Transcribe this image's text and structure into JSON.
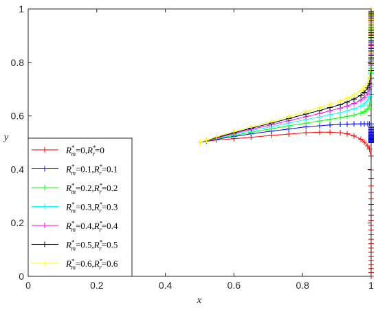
{
  "chart_data": {
    "type": "line",
    "title": "",
    "xlabel": "x",
    "ylabel": "y",
    "xlim": [
      0,
      1
    ],
    "ylim": [
      0,
      1
    ],
    "xticks": [
      "0",
      "0.2",
      "0.4",
      "0.6",
      "0.8",
      "1"
    ],
    "yticks": [
      "0",
      "0.2",
      "0.4",
      "0.6",
      "0.8",
      "1"
    ],
    "grid": false,
    "legend_position": "bottom-left",
    "start_point": [
      0.5,
      0.5
    ],
    "series": [
      {
        "name": "R*m=0,R*r=0",
        "legend": {
          "a": "R",
          "asub": "m",
          "aval": "=0,",
          "b": "R",
          "bsub": "r",
          "bval": "=0"
        },
        "color": "#ff0000",
        "end_y": 0,
        "x": [
          0.5,
          0.52,
          0.55,
          0.6,
          0.65,
          0.71,
          0.76,
          0.81,
          0.85,
          0.88,
          0.91,
          0.93,
          0.95,
          0.97,
          0.98,
          0.99,
          0.995,
          1
        ],
        "y": [
          0.5,
          0.505,
          0.51,
          0.515,
          0.52,
          0.527,
          0.532,
          0.537,
          0.539,
          0.539,
          0.537,
          0.533,
          0.525,
          0.513,
          0.502,
          0.488,
          0.476,
          0.45
        ]
      },
      {
        "name": "R*m=0.1,R*r=0.1",
        "legend": {
          "a": "R",
          "asub": "m",
          "aval": "=0.1,",
          "b": "R",
          "bsub": "r",
          "bval": "=0.1"
        },
        "color": "#0000ff",
        "end_y": 0.5,
        "x": [
          0.5,
          0.52,
          0.55,
          0.6,
          0.65,
          0.71,
          0.76,
          0.81,
          0.85,
          0.88,
          0.91,
          0.93,
          0.95,
          0.97,
          0.98,
          0.99,
          0.995,
          1
        ],
        "y": [
          0.5,
          0.506,
          0.513,
          0.523,
          0.533,
          0.543,
          0.551,
          0.559,
          0.563,
          0.566,
          0.568,
          0.569,
          0.57,
          0.57,
          0.57,
          0.57,
          0.57,
          0.57
        ]
      },
      {
        "name": "R*m=0.2,R*r=0.2",
        "legend": {
          "a": "R",
          "asub": "m",
          "aval": "=0.2,",
          "b": "R",
          "bsub": "r",
          "bval": "=0.2"
        },
        "color": "#00ff00",
        "end_y": 1,
        "x": [
          0.5,
          0.52,
          0.55,
          0.6,
          0.65,
          0.71,
          0.76,
          0.81,
          0.85,
          0.88,
          0.91,
          0.93,
          0.95,
          0.97,
          0.98,
          0.99,
          0.995,
          1
        ],
        "y": [
          0.5,
          0.507,
          0.515,
          0.527,
          0.539,
          0.552,
          0.563,
          0.573,
          0.581,
          0.587,
          0.593,
          0.598,
          0.603,
          0.61,
          0.616,
          0.626,
          0.64,
          0.68
        ]
      },
      {
        "name": "R*m=0.3,R*r=0.3",
        "legend": {
          "a": "R",
          "asub": "m",
          "aval": "=0.3,",
          "b": "R",
          "bsub": "r",
          "bval": "=0.3"
        },
        "color": "#00ffff",
        "end_y": 1,
        "x": [
          0.5,
          0.52,
          0.55,
          0.6,
          0.65,
          0.71,
          0.76,
          0.81,
          0.85,
          0.88,
          0.91,
          0.93,
          0.95,
          0.97,
          0.98,
          0.99,
          0.995,
          1
        ],
        "y": [
          0.5,
          0.507,
          0.517,
          0.531,
          0.545,
          0.56,
          0.573,
          0.586,
          0.596,
          0.604,
          0.612,
          0.619,
          0.627,
          0.637,
          0.645,
          0.658,
          0.672,
          0.71
        ]
      },
      {
        "name": "R*m=0.4,R*r=0.4",
        "legend": {
          "a": "R",
          "asub": "m",
          "aval": "=0.4,",
          "b": "R",
          "bsub": "r",
          "bval": "=0.4"
        },
        "color": "#ff00ff",
        "end_y": 1,
        "x": [
          0.5,
          0.52,
          0.55,
          0.6,
          0.65,
          0.71,
          0.76,
          0.81,
          0.85,
          0.88,
          0.91,
          0.93,
          0.95,
          0.97,
          0.98,
          0.99,
          0.995,
          1
        ],
        "y": [
          0.5,
          0.508,
          0.518,
          0.534,
          0.55,
          0.567,
          0.582,
          0.597,
          0.609,
          0.619,
          0.629,
          0.637,
          0.647,
          0.659,
          0.669,
          0.684,
          0.7,
          0.74
        ]
      },
      {
        "name": "R*m=0.5,R*r=0.5",
        "legend": {
          "a": "R",
          "asub": "m",
          "aval": "=0.5,",
          "b": "R",
          "bsub": "r",
          "bval": "=0.5"
        },
        "color": "#000000",
        "end_y": 1,
        "x": [
          0.5,
          0.52,
          0.55,
          0.6,
          0.65,
          0.71,
          0.76,
          0.81,
          0.85,
          0.88,
          0.91,
          0.93,
          0.95,
          0.97,
          0.98,
          0.99,
          0.995,
          1
        ],
        "y": [
          0.5,
          0.508,
          0.52,
          0.537,
          0.554,
          0.573,
          0.59,
          0.607,
          0.62,
          0.631,
          0.642,
          0.652,
          0.663,
          0.677,
          0.688,
          0.705,
          0.722,
          0.77
        ]
      },
      {
        "name": "R*m=0.6,R*r=0.6",
        "legend": {
          "a": "R",
          "asub": "m",
          "aval": "=0.6,",
          "b": "R",
          "bsub": "r",
          "bval": "=0.6"
        },
        "color": "#ffff00",
        "end_y": 1,
        "x": [
          0.5,
          0.52,
          0.55,
          0.6,
          0.65,
          0.71,
          0.76,
          0.81,
          0.85,
          0.88,
          0.91,
          0.93,
          0.95,
          0.97,
          0.98,
          0.99,
          0.995,
          1
        ],
        "y": [
          0.5,
          0.509,
          0.522,
          0.541,
          0.56,
          0.58,
          0.598,
          0.617,
          0.631,
          0.644,
          0.656,
          0.667,
          0.679,
          0.694,
          0.707,
          0.726,
          0.745,
          0.8
        ]
      }
    ]
  }
}
